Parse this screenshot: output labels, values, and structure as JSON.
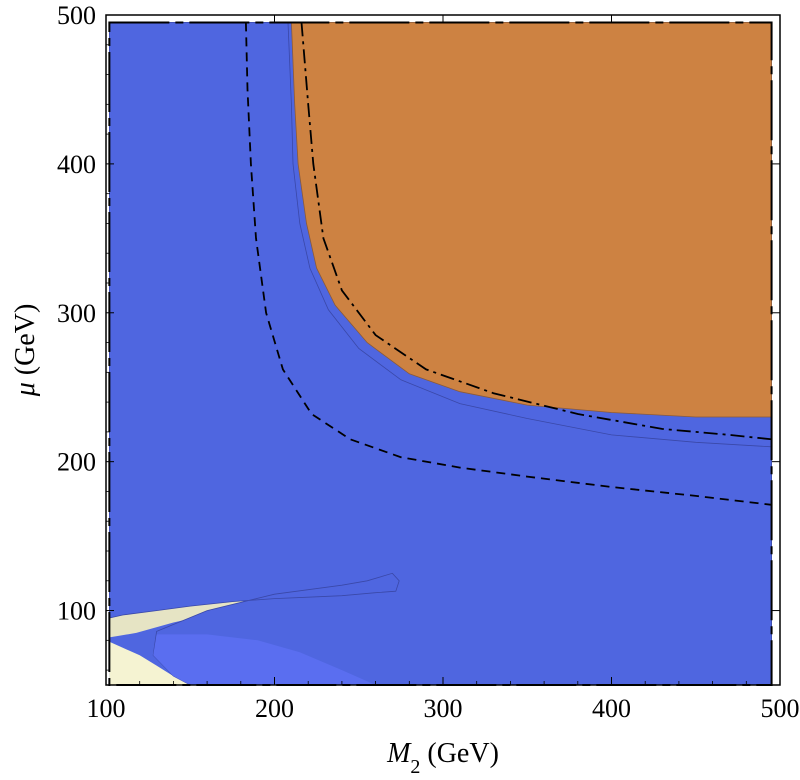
{
  "chart_data": {
    "type": "contour",
    "title": "",
    "xlabel_main": "M",
    "xlabel_sub": "2",
    "xlabel_unit": " (GeV)",
    "ylabel_main": "μ",
    "ylabel_unit": " (GeV)",
    "xlim": [
      100,
      500
    ],
    "ylim": [
      50,
      500
    ],
    "grid": false,
    "x_ticks": [
      100,
      200,
      300,
      400,
      500
    ],
    "y_ticks": [
      100,
      200,
      300,
      400,
      500
    ],
    "colors": {
      "blue_region": "#4f66e0",
      "bright_blue_region": "#5a6ef0",
      "orange_region": "#cd8242",
      "pale_yellow_region": "#f5f3d2",
      "grey_yellow_region": "#e6e4c4",
      "frame": "#000000"
    },
    "regions": {
      "orange": [
        [
          210,
          495
        ],
        [
          212,
          440
        ],
        [
          214,
          400
        ],
        [
          219,
          360
        ],
        [
          225,
          330
        ],
        [
          236,
          305
        ],
        [
          255,
          280
        ],
        [
          280,
          259
        ],
        [
          310,
          247
        ],
        [
          350,
          238
        ],
        [
          400,
          233
        ],
        [
          450,
          230
        ],
        [
          495,
          230
        ],
        [
          495,
          495
        ]
      ],
      "blue": [
        [
          102,
          495
        ],
        [
          208,
          495
        ],
        [
          210,
          440
        ],
        [
          211,
          400
        ],
        [
          215,
          360
        ],
        [
          221,
          330
        ],
        [
          232,
          302
        ],
        [
          250,
          276
        ],
        [
          275,
          255
        ],
        [
          310,
          239
        ],
        [
          350,
          229
        ],
        [
          400,
          218
        ],
        [
          450,
          213
        ],
        [
          495,
          210
        ],
        [
          495,
          50
        ],
        [
          150,
          50
        ],
        [
          140,
          56
        ],
        [
          128,
          70
        ],
        [
          130,
          86
        ],
        [
          160,
          100
        ],
        [
          200,
          111
        ],
        [
          240,
          117
        ],
        [
          255,
          120
        ],
        [
          270,
          125
        ],
        [
          274,
          120
        ],
        [
          272,
          113
        ],
        [
          260,
          112
        ],
        [
          240,
          110
        ],
        [
          220,
          109
        ],
        [
          200,
          108
        ],
        [
          175,
          106
        ],
        [
          150,
          103
        ],
        [
          130,
          100
        ],
        [
          110,
          97
        ],
        [
          102,
          95
        ]
      ],
      "pale_yellow": [
        [
          102,
          95
        ],
        [
          118,
          90
        ],
        [
          130,
          100
        ],
        [
          150,
          106
        ],
        [
          175,
          110
        ],
        [
          200,
          115
        ],
        [
          230,
          118
        ],
        [
          248,
          120
        ],
        [
          230,
          123
        ],
        [
          205,
          127
        ],
        [
          180,
          135
        ],
        [
          160,
          145
        ],
        [
          145,
          160
        ],
        [
          132,
          180
        ],
        [
          124,
          210
        ],
        [
          118,
          250
        ],
        [
          113,
          300
        ],
        [
          108,
          350
        ],
        [
          104,
          400
        ],
        [
          102,
          440
        ],
        [
          102,
          50
        ],
        [
          150,
          50
        ],
        [
          140,
          56
        ],
        [
          130,
          63
        ],
        [
          120,
          70
        ],
        [
          110,
          75
        ],
        [
          102,
          79
        ]
      ],
      "grey_yellow": [
        [
          102,
          82
        ],
        [
          118,
          85
        ],
        [
          140,
          92
        ],
        [
          160,
          97
        ],
        [
          190,
          101
        ],
        [
          215,
          106
        ],
        [
          232,
          112
        ],
        [
          212,
          114
        ],
        [
          180,
          120
        ],
        [
          155,
          130
        ],
        [
          138,
          145
        ],
        [
          127,
          170
        ],
        [
          120,
          200
        ],
        [
          115,
          240
        ],
        [
          110,
          290
        ],
        [
          106,
          340
        ],
        [
          102,
          380
        ]
      ]
    },
    "series": [
      {
        "style": "dashed",
        "points": [
          [
            183,
            495
          ],
          [
            184,
            450
          ],
          [
            186,
            400
          ],
          [
            189,
            350
          ],
          [
            195,
            300
          ],
          [
            205,
            262
          ],
          [
            222,
            232
          ],
          [
            245,
            215
          ],
          [
            275,
            203
          ],
          [
            310,
            196
          ],
          [
            350,
            190
          ],
          [
            400,
            183
          ],
          [
            450,
            177
          ],
          [
            495,
            171
          ]
        ]
      },
      {
        "style": "dashdot",
        "points": [
          [
            216,
            495
          ],
          [
            220,
            440
          ],
          [
            223,
            400
          ],
          [
            229,
            350
          ],
          [
            240,
            315
          ],
          [
            260,
            285
          ],
          [
            290,
            262
          ],
          [
            330,
            246
          ],
          [
            380,
            232
          ],
          [
            430,
            222
          ],
          [
            470,
            218
          ],
          [
            495,
            215
          ]
        ]
      }
    ]
  }
}
